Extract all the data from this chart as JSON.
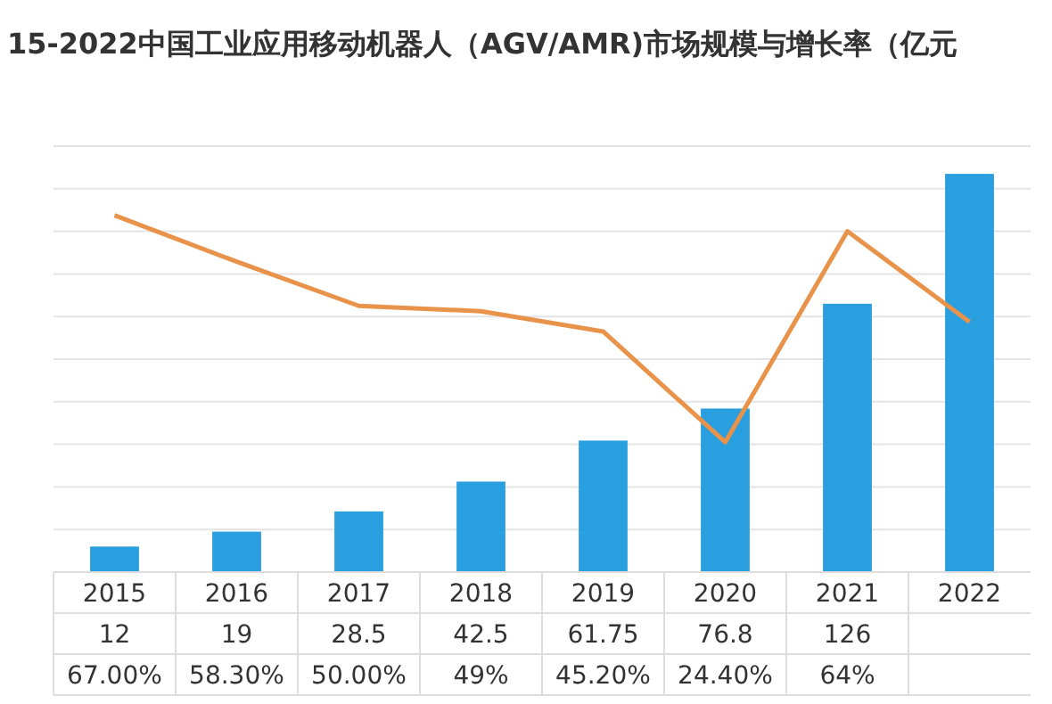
{
  "chart_data": {
    "type": "bar",
    "title": "15-2022中国工业应用移动机器人（AGV/AMR)市场规模与增长率（亿元",
    "categories": [
      "2015",
      "2016",
      "2017",
      "2018",
      "2019",
      "2020",
      "2021",
      "2022"
    ],
    "series": [
      {
        "color": "#2a9fe0",
        "values": [
          12,
          19,
          28.5,
          42.5,
          61.75,
          76.8,
          126,
          187
        ],
        "value_labels": [
          "12",
          "19",
          "28.5",
          "42.5",
          "61.75",
          "76.8",
          "126",
          null
        ]
      },
      {
        "type": "line",
        "axis": "y2",
        "color": "#e8924a",
        "values": [
          67,
          58.3,
          50,
          49,
          45.2,
          24.4,
          64,
          47
        ],
        "value_labels": [
          "67.00%",
          "58.30%",
          "50.00%",
          "49%",
          "45.20%",
          "24.40%",
          "64%",
          null
        ]
      }
    ],
    "ylim": [
      0,
      200
    ],
    "yticks": [
      {
        "value": 0,
        "label": null
      },
      {
        "value": 20,
        "label": null
      },
      {
        "value": 40,
        "label": null
      },
      {
        "value": 60,
        "label": null
      },
      {
        "value": 80,
        "label": null
      },
      {
        "value": 100,
        "label": null
      },
      {
        "value": 120,
        "label": null
      },
      {
        "value": 140,
        "label": null
      },
      {
        "value": 160,
        "label": null
      },
      {
        "value": 180,
        "label": null
      },
      {
        "value": 200,
        "label": null
      }
    ],
    "y2lim": [
      0,
      80
    ],
    "grid": "y",
    "marker": "none"
  }
}
